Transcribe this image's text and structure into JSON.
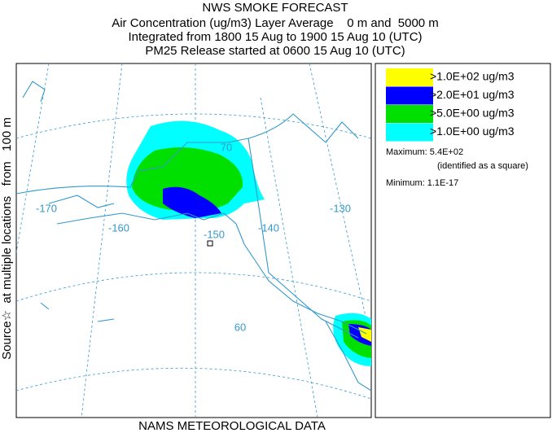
{
  "header": {
    "title": "NWS SMOKE FORECAST",
    "lines": [
      "Air Concentration (ug/m3) Layer Average    0 m and  5000 m",
      "Integrated from 1800 15 Aug to 1900 15 Aug 10 (UTC)",
      "PM25 Release started at 0600 15 Aug 10 (UTC)"
    ]
  },
  "side_label": "Source☆  at multiple locations   from   100 m",
  "footer": "NAMS METEOROLOGICAL DATA",
  "map": {
    "labels": [
      "-170",
      "-160",
      "-150",
      "-140",
      "-130",
      "70",
      "60"
    ]
  },
  "legend": {
    "entries": [
      {
        "label": ">1.0E+02 ug/m3",
        "color": "#ffff00"
      },
      {
        "label": ">2.0E+01 ug/m3",
        "color": "#0000ff"
      },
      {
        "label": ">5.0E+00 ug/m3",
        "color": "#00e000"
      },
      {
        "label": ">1.0E+00 ug/m3",
        "color": "#00ffff"
      }
    ],
    "maximum": "Maximum: 5.4E+02",
    "maximum_note": "(identified as a square)",
    "minimum": "Minimum: 1.1E-17"
  }
}
